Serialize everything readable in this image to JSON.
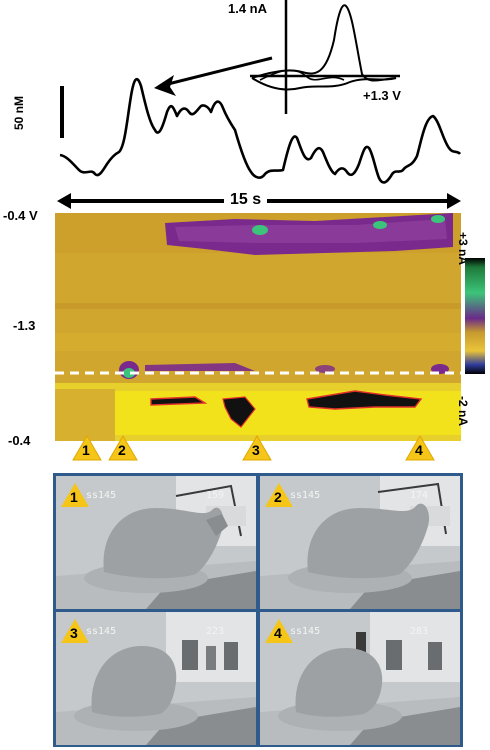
{
  "voltammogram": {
    "current_label": "1.4 nA",
    "voltage_label": "+1.3 V"
  },
  "trace": {
    "scale_label": "50 nM"
  },
  "time_bar": {
    "label": "15 s"
  },
  "colorplot": {
    "y_ticks": [
      "-0.4 V",
      "-1.3",
      "-0.4"
    ],
    "colorbar_top": "+3 nA",
    "colorbar_bottom": "-2 nA",
    "colors": {
      "background": "#d1a62e",
      "purple": "#7a2a8c",
      "green": "#3cc47a",
      "yellow": "#f1e21c",
      "dashed_line": "#ffffff"
    }
  },
  "event_markers": [
    "1",
    "2",
    "3",
    "4"
  ],
  "video_frames": [
    {
      "marker": "1",
      "left_text": "ss145",
      "right_text": "159"
    },
    {
      "marker": "2",
      "left_text": "ss145",
      "right_text": "174"
    },
    {
      "marker": "3",
      "left_text": "ss145",
      "right_text": "223"
    },
    {
      "marker": "4",
      "left_text": "ss145",
      "right_text": "283"
    }
  ],
  "colors": {
    "marker_fill": "#f5c518",
    "frame_border": "#2f5a8c"
  }
}
